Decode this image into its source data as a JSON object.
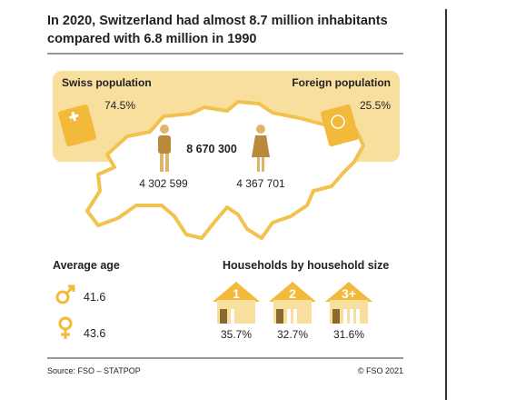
{
  "header": {
    "title_lines": [
      "In 2020, Switzerland had almost 8.7 million inhabitants",
      "compared with 6.8 million in 1990"
    ]
  },
  "population": {
    "swiss_label": "Swiss population",
    "swiss_share": "74.5%",
    "foreign_label": "Foreign population",
    "foreign_share": "25.5%",
    "total": "8 670 300",
    "men": "4 302 599",
    "women": "4 367 701"
  },
  "average_age": {
    "title": "Average age",
    "men": "41.6",
    "women": "43.6"
  },
  "households": {
    "title": "Households by household size",
    "items": [
      {
        "size": "1",
        "share": "35.7%"
      },
      {
        "size": "2",
        "share": "32.7%"
      },
      {
        "size": "3+",
        "share": "31.6%"
      }
    ]
  },
  "footer": {
    "source": "Source: FSO – STATPOP",
    "copyright": "© FSO 2021"
  }
}
